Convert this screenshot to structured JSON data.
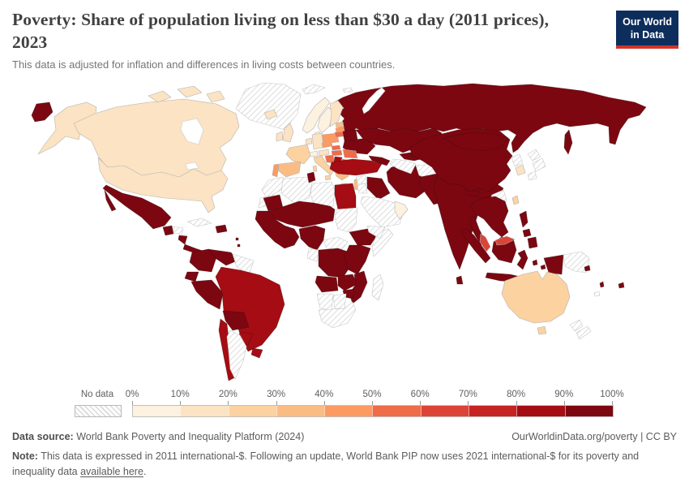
{
  "header": {
    "title_lines": [
      "Poverty: Share of population living on less than $30 a day (2011 prices),",
      "2023"
    ],
    "subtitle": "This data is adjusted for inflation and differences in living costs between countries.",
    "logo": {
      "line1": "Our World",
      "line2": "in Data"
    }
  },
  "legend": {
    "no_data_label": "No data",
    "tick_labels": [
      "0%",
      "10%",
      "20%",
      "30%",
      "40%",
      "50%",
      "60%",
      "70%",
      "80%",
      "90%",
      "100%"
    ]
  },
  "footer": {
    "source_label": "Data source:",
    "source_text": " World Bank Poverty and Inequality Platform (2024)",
    "rights_link": "OurWorldinData.org/poverty",
    "rights_suffix": " | CC BY",
    "note_label": "Note:",
    "note_before_link": " This data is expressed in 2011 international-$. Following an update, World Bank PIP now uses 2021 international-$ for its poverty and inequality data ",
    "note_link_text": "available here",
    "note_after_link": "."
  },
  "colors": {
    "logo_bg": "#0d2e5c",
    "logo_accent": "#d0342c",
    "no_data_border": "#c6c6c6",
    "country_border_light": "#b3b3b3",
    "country_border_dark": "rgba(45,12,12,0.55)"
  },
  "chart_data": {
    "type": "choropleth",
    "title": "Poverty: Share of population living on less than $30 a day (2011 prices), 2023",
    "unit": "% of population living on less than $30 a day",
    "year": 2023,
    "legend_bins": [
      {
        "label": "0-10%",
        "color": "#fdf1e0"
      },
      {
        "label": "10-20%",
        "color": "#fbe3c3"
      },
      {
        "label": "20-30%",
        "color": "#fbd2a0"
      },
      {
        "label": "30-40%",
        "color": "#fbbc84"
      },
      {
        "label": "40-50%",
        "color": "#fc9a62"
      },
      {
        "label": "50-60%",
        "color": "#ef6c49"
      },
      {
        "label": "60-70%",
        "color": "#dc4437"
      },
      {
        "label": "70-80%",
        "color": "#c62420"
      },
      {
        "label": "80-90%",
        "color": "#a60c13"
      },
      {
        "label": "90-100%",
        "color": "#7c0711"
      }
    ],
    "no_data": {
      "label": "No data",
      "style": "diagonal-hatch"
    },
    "countries": {
      "Canada": "10-20%",
      "United States": "10-20%",
      "Greenland": "No data",
      "Mexico": "90-100%",
      "Guatemala": "90-100%",
      "Honduras": "No data",
      "Nicaragua": "90-100%",
      "Costa Rica": "90-100%",
      "Panama": "90-100%",
      "Cuba": "No data",
      "Haiti": "90-100%",
      "Dominican Republic": "90-100%",
      "Lesser Antilles": "90-100%",
      "Colombia": "90-100%",
      "Venezuela": "90-100%",
      "Guyana": "No data",
      "Suriname": "No data",
      "Ecuador": "90-100%",
      "Peru": "90-100%",
      "Brazil": "80-90%",
      "Bolivia": "90-100%",
      "Paraguay": "80-90%",
      "Uruguay": "80-90%",
      "Chile": "80-90%",
      "Argentina": "No data",
      "Iceland": "10-20%",
      "Norway": "0-10%",
      "Sweden": "0-10%",
      "Denmark": "0-10%",
      "Finland": "10-20%",
      "United Kingdom": "10-20%",
      "Ireland": "10-20%",
      "Netherlands": "10-20%",
      "Belgium": "10-20%",
      "Germany": "10-20%",
      "France": "20-30%",
      "Switzerland": "0-10%",
      "Austria": "10-20%",
      "Spain": "30-40%",
      "Portugal": "40-50%",
      "Italy": "20-30%",
      "Czechia": "40-50%",
      "Poland": "40-50%",
      "Estonia": "30-40%",
      "Latvia": "40-50%",
      "Lithuania": "50-60%",
      "Belarus": "90-100%",
      "Ukraine": "90-100%",
      "Moldova": "90-100%",
      "Slovakia": "50-60%",
      "Hungary": "50-60%",
      "Romania": "50-60%",
      "Croatia": "50-60%",
      "Bosnia and Herzegovina": "70-80%",
      "Serbia": "80-90%",
      "Albania": "80-90%",
      "North Macedonia": "80-90%",
      "Bulgaria": "60-70%",
      "Greece": "30-40%",
      "Russia": "90-100%",
      "Svalbard": "No data",
      "Turkey": "80-90%",
      "Georgia": "90-100%",
      "Armenia": "90-100%",
      "Azerbaijan": "90-100%",
      "Syria": "No data",
      "Lebanon": "No data",
      "Israel": "30-40%",
      "Jordan": "No data",
      "Iraq": "90-100%",
      "Saudi Arabia": "No data",
      "Yemen": "No data",
      "United Arab Emirates": "0-10%",
      "Oman": "0-10%",
      "Iran": "90-100%",
      "Kazakhstan": "90-100%",
      "Uzbekistan": "90-100%",
      "Kyrgyzstan": "90-100%",
      "Tajikistan": "90-100%",
      "Turkmenistan": "No data",
      "Afghanistan": "No data",
      "Pakistan": "90-100%",
      "India": "90-100%",
      "Nepal": "90-100%",
      "Bangladesh": "90-100%",
      "Sri Lanka": "90-100%",
      "Myanmar": "No data",
      "China": "90-100%",
      "Mongolia": "90-100%",
      "North Korea": "No data",
      "South Korea": "10-20%",
      "Japan": "No data",
      "Taiwan": "20-30%",
      "Thailand": "90-100%",
      "Laos": "90-100%",
      "Cambodia": "90-100%",
      "Vietnam": "90-100%",
      "Malaysia": "60-70%",
      "Indonesia": "90-100%",
      "Philippines": "90-100%",
      "Papua New Guinea": "No data",
      "Australia": "20-30%",
      "New Zealand": "No data",
      "Fiji": "90-100%",
      "Vanuatu": "90-100%",
      "Solomon Islands": "90-100%",
      "New Caledonia": "No data",
      "Morocco": "No data",
      "Western Sahara": "No data",
      "Algeria": "No data",
      "Tunisia": "90-100%",
      "Libya": "No data",
      "Egypt": "80-90%",
      "Mauritania": "90-100%",
      "Mali": "90-100%",
      "Niger": "90-100%",
      "Chad": "90-100%",
      "Burkina Faso": "90-100%",
      "Senegal": "90-100%",
      "Guinea": "90-100%",
      "Sierra Leone": "90-100%",
      "Liberia": "90-100%",
      "Cote d'Ivoire": "90-100%",
      "Ghana": "90-100%",
      "Togo": "90-100%",
      "Benin": "90-100%",
      "Nigeria": "90-100%",
      "Cameroon": "90-100%",
      "Central African Republic": "No data",
      "Sudan": "No data",
      "South Sudan": "No data",
      "Eritrea": "No data",
      "Ethiopia": "90-100%",
      "Somalia": "No data",
      "Kenya": "90-100%",
      "Uganda": "90-100%",
      "Tanzania": "90-100%",
      "Rwanda": "90-100%",
      "Burundi": "90-100%",
      "Democratic Republic of Congo": "90-100%",
      "Congo": "No data",
      "Gabon": "No data",
      "Angola": "90-100%",
      "Zambia": "90-100%",
      "Malawi": "90-100%",
      "Zimbabwe": "90-100%",
      "Mozambique": "90-100%",
      "Namibia": "No data",
      "Botswana": "No data",
      "South Africa": "No data",
      "Madagascar": "No data"
    }
  }
}
